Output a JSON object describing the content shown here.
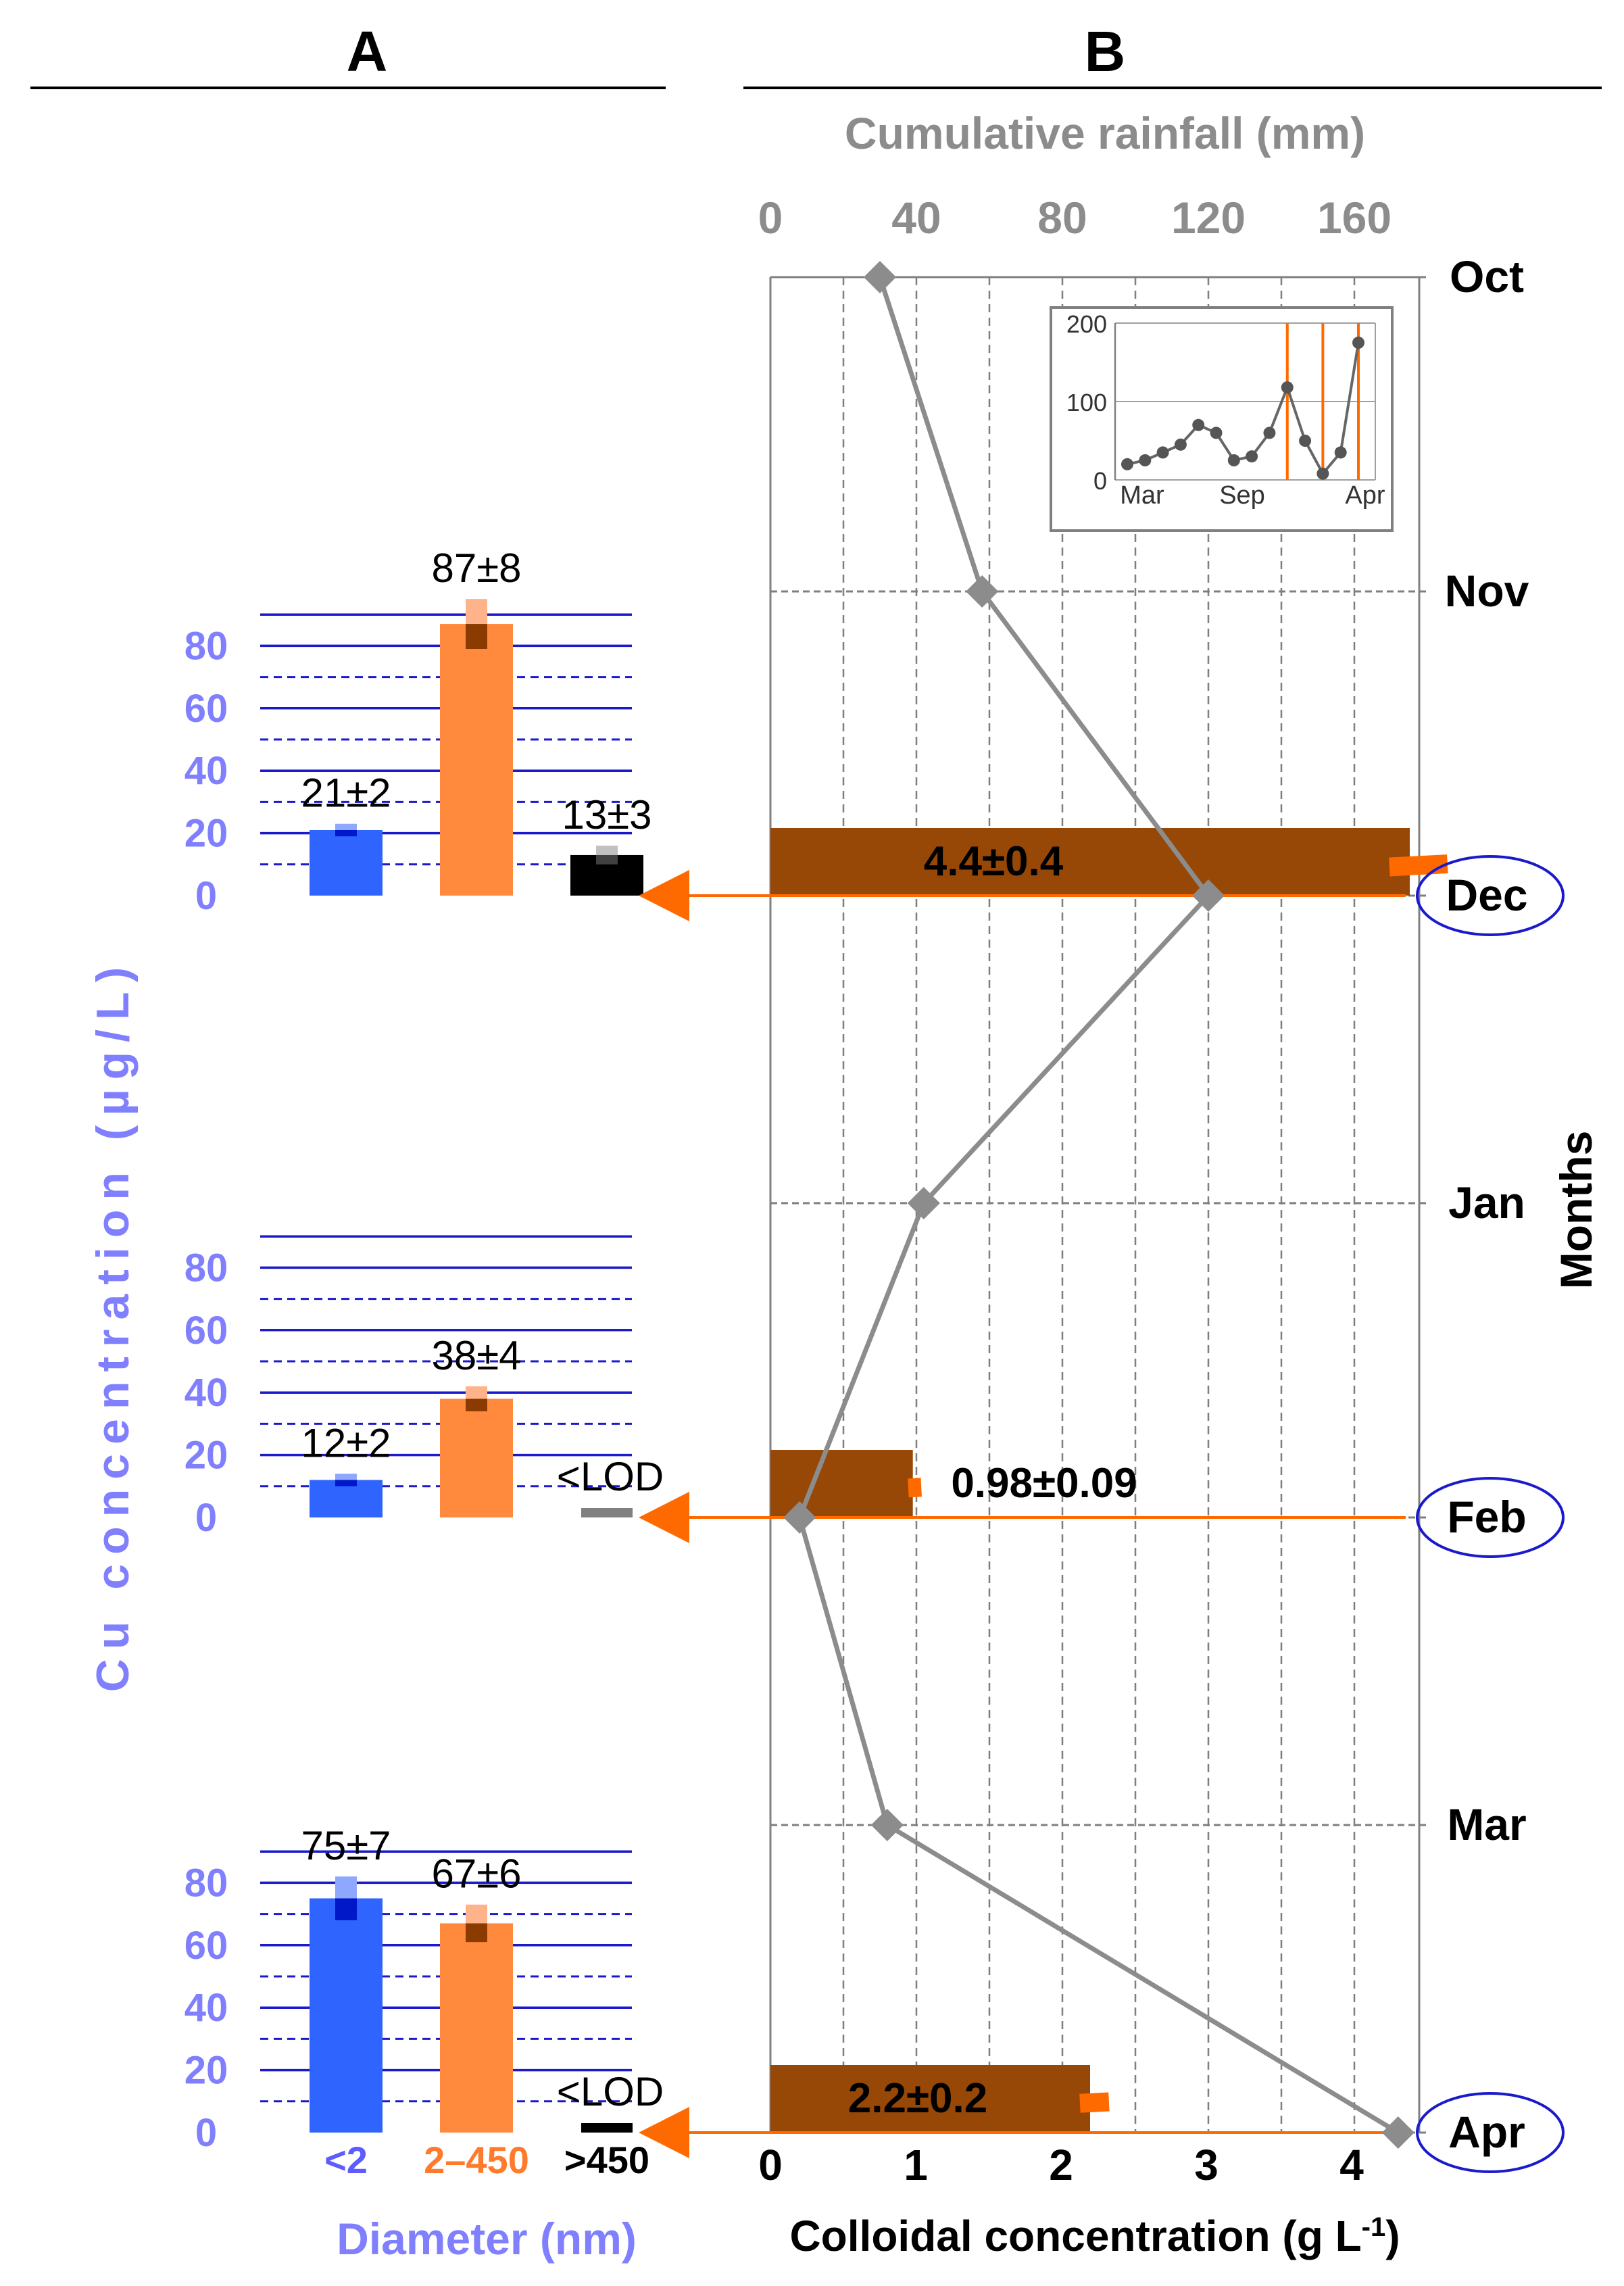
{
  "panel_a": {
    "label": "A",
    "y_axis_label": "Cu concentration   (µg/L)",
    "x_axis_label": "Diameter (nm)",
    "fraction_labels": [
      "<2",
      "2–450",
      ">450"
    ],
    "fraction_colors": [
      "#2f64ff",
      "#ff8a3d",
      "#000000"
    ],
    "ytick_labels": [
      "0",
      "20",
      "40",
      "60",
      "80"
    ]
  },
  "panel_b": {
    "label": "B",
    "top_axis_label": "Cumulative rainfall (mm)",
    "bottom_axis_label": "Colloidal concentration (g L",
    "bottom_axis_label_sup": "-1",
    "bottom_axis_label_end": ")",
    "right_axis_label": "Months",
    "top_tick_labels": [
      "0",
      "40",
      "80",
      "120",
      "160"
    ],
    "bottom_tick_labels": [
      "0",
      "1",
      "2",
      "3",
      "4"
    ],
    "months": [
      "Oct",
      "Nov",
      "Dec",
      "Jan",
      "Feb",
      "Mar",
      "Apr"
    ],
    "circled_months": [
      "Dec",
      "Feb",
      "Apr"
    ]
  },
  "inset": {
    "ytick_labels": [
      "0",
      "100",
      "200"
    ],
    "xtick_labels": [
      "Mar",
      "Sep",
      "Apr"
    ]
  },
  "chart_data": [
    {
      "type": "bar",
      "panel": "A",
      "sample_month": "Dec",
      "categories": [
        "<2",
        "2–450",
        ">450"
      ],
      "values": [
        21,
        87,
        13
      ],
      "errors": [
        2,
        8,
        3
      ],
      "value_labels": [
        "21±2",
        "87±8",
        "13±3"
      ],
      "ylim": [
        0,
        90
      ]
    },
    {
      "type": "bar",
      "panel": "A",
      "sample_month": "Feb",
      "categories": [
        "<2",
        "2–450",
        ">450"
      ],
      "values": [
        12,
        38,
        2
      ],
      "errors": [
        2,
        4,
        0
      ],
      "value_labels": [
        "12±2",
        "38±4",
        "<LOD"
      ],
      "ylim": [
        0,
        90
      ]
    },
    {
      "type": "bar",
      "panel": "A",
      "sample_month": "Apr",
      "categories": [
        "<2",
        "2–450",
        ">450"
      ],
      "values": [
        75,
        67,
        2
      ],
      "errors": [
        7,
        6,
        0
      ],
      "value_labels": [
        "75±7",
        "67±6",
        "<LOD"
      ],
      "ylim": [
        0,
        90
      ]
    },
    {
      "type": "line",
      "panel": "B",
      "name": "Cumulative rainfall (mm)",
      "categories": [
        "Oct",
        "Nov",
        "Dec",
        "Jan",
        "Feb",
        "Mar",
        "Apr"
      ],
      "values": [
        30,
        58,
        120,
        42,
        8,
        32,
        172
      ],
      "xlim": [
        0,
        180
      ],
      "color": "#8c8c8c"
    },
    {
      "type": "bar",
      "panel": "B",
      "name": "Colloidal concentration (g L-1)",
      "categories": [
        "Dec",
        "Feb",
        "Apr"
      ],
      "values": [
        4.4,
        0.98,
        2.2
      ],
      "errors": [
        0.4,
        0.09,
        0.2
      ],
      "value_labels": [
        "4.4±0.4",
        "0.98±0.09",
        "2.2±0.2"
      ],
      "xlim": [
        0,
        4.5
      ],
      "color": "#974806"
    },
    {
      "type": "line",
      "panel": "B-inset",
      "x_labels": [
        "Mar",
        "Sep",
        "Apr"
      ],
      "values": [
        20,
        25,
        35,
        45,
        70,
        60,
        25,
        30,
        60,
        118,
        50,
        8,
        35,
        175
      ],
      "ylim": [
        0,
        200
      ],
      "vertical_markers_index": [
        9,
        11,
        13
      ],
      "marker_color": "#ff6a00"
    }
  ]
}
